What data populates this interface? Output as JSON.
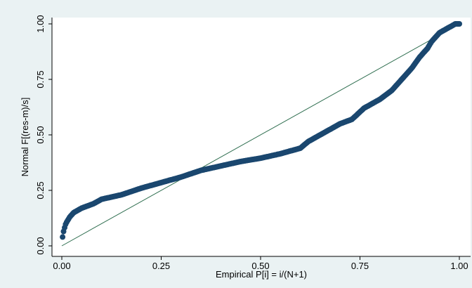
{
  "chart_data": {
    "type": "scatter",
    "title": "",
    "xlabel": "Empirical P[i] = i/(N+1)",
    "ylabel": "Normal F[(res-m)/s]",
    "xlim": [
      0,
      1
    ],
    "ylim": [
      0,
      1
    ],
    "x_ticks": [
      0,
      0.25,
      0.5,
      0.75,
      1
    ],
    "y_ticks": [
      0,
      0.25,
      0.5,
      0.75,
      1
    ],
    "x_tick_labels": [
      "0.00",
      "0.25",
      "0.50",
      "0.75",
      "1.00"
    ],
    "y_tick_labels": [
      "0.00",
      "0.25",
      "0.50",
      "0.75",
      "1.00"
    ],
    "grid": false,
    "legend": "none",
    "colors": {
      "background": "#eaf2f3",
      "plot_area": "#ffffff",
      "points": "#1a476f",
      "reference_line": "#2d6d4e"
    },
    "reference_line": {
      "x": [
        0,
        1
      ],
      "y": [
        0,
        1
      ]
    },
    "series": [
      {
        "curve_x": [
          0.002,
          0.005,
          0.01,
          0.02,
          0.03,
          0.05,
          0.08,
          0.1,
          0.15,
          0.2,
          0.25,
          0.3,
          0.35,
          0.4,
          0.45,
          0.5,
          0.55,
          0.6,
          0.62,
          0.65,
          0.7,
          0.73,
          0.76,
          0.8,
          0.83,
          0.86,
          0.88,
          0.9,
          0.92,
          0.93,
          0.95,
          0.97,
          0.99,
          1.0
        ],
        "curve_y": [
          0.04,
          0.07,
          0.1,
          0.13,
          0.15,
          0.17,
          0.19,
          0.21,
          0.23,
          0.26,
          0.285,
          0.31,
          0.34,
          0.36,
          0.38,
          0.395,
          0.415,
          0.44,
          0.47,
          0.5,
          0.55,
          0.57,
          0.62,
          0.66,
          0.7,
          0.76,
          0.8,
          0.85,
          0.89,
          0.92,
          0.96,
          0.98,
          1.0,
          1.0
        ],
        "n_points": 400
      }
    ]
  }
}
